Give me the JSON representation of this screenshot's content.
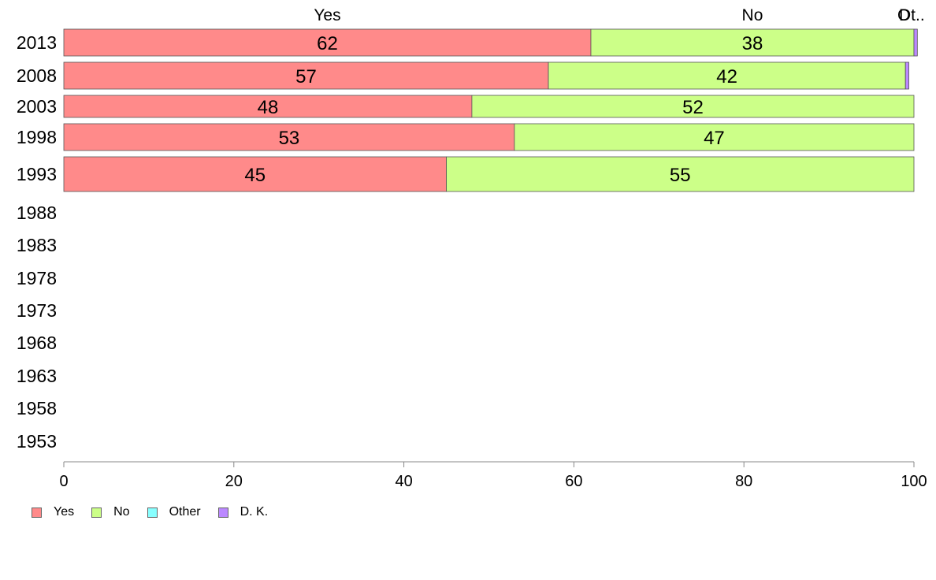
{
  "chart_data": {
    "type": "bar",
    "orientation": "horizontal",
    "stacked": true,
    "categories": [
      "2013",
      "2008",
      "2003",
      "1998",
      "1993",
      "1988",
      "1983",
      "1978",
      "1973",
      "1968",
      "1963",
      "1958",
      "1953"
    ],
    "series": [
      {
        "name": "Yes",
        "color": "#ff8a8a",
        "values": [
          62,
          57,
          48,
          53,
          45,
          null,
          null,
          null,
          null,
          null,
          null,
          null,
          null
        ]
      },
      {
        "name": "No",
        "color": "#ccff88",
        "values": [
          38,
          42,
          52,
          47,
          55,
          null,
          null,
          null,
          null,
          null,
          null,
          null,
          null
        ]
      },
      {
        "name": "Other",
        "color": "#88ffff",
        "values": [
          0,
          0,
          0,
          0,
          0,
          null,
          null,
          null,
          null,
          null,
          null,
          null,
          null
        ]
      },
      {
        "name": "D. K.",
        "color": "#bb88ff",
        "values": [
          0.4,
          0.4,
          0,
          0,
          0,
          null,
          null,
          null,
          null,
          null,
          null,
          null,
          null
        ]
      }
    ],
    "data_labels": [
      [
        "62",
        "57",
        "48",
        "53",
        "45"
      ],
      [
        "38",
        "42",
        "52",
        "47",
        "55"
      ]
    ],
    "top_labels": [
      "Yes",
      "No",
      "O",
      "Dt.."
    ],
    "xlim": [
      0,
      100
    ],
    "xticks": [
      0,
      20,
      40,
      60,
      80,
      100
    ],
    "grid": false,
    "legend_position": "bottom-left"
  },
  "legend": [
    {
      "label": "Yes",
      "color": "#ff8a8a"
    },
    {
      "label": "No",
      "color": "#ccff88"
    },
    {
      "label": "Other",
      "color": "#88ffff"
    },
    {
      "label": "D. K.",
      "color": "#bb88ff"
    }
  ]
}
